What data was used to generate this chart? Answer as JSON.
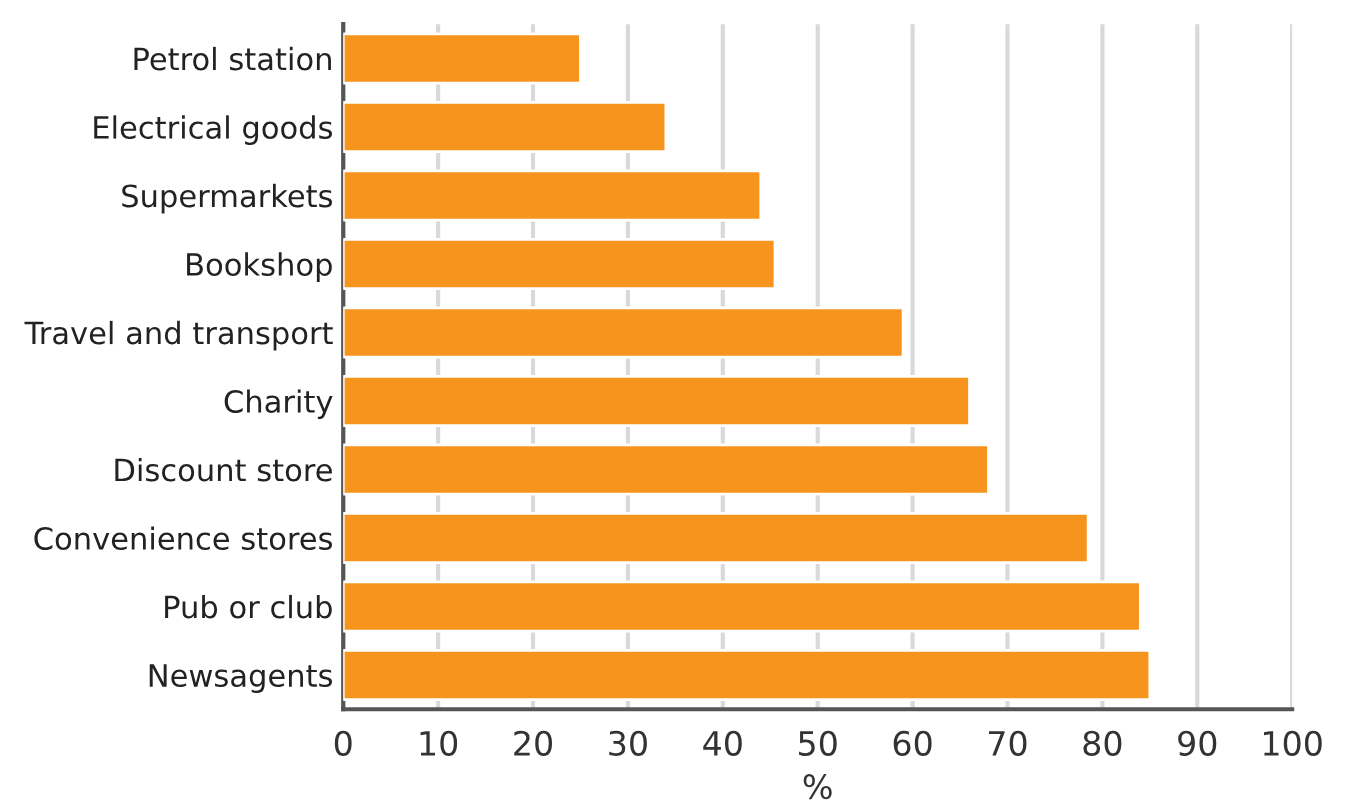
{
  "chart_data": {
    "type": "bar",
    "orientation": "horizontal",
    "xlabel": "%",
    "categories": [
      "Petrol station",
      "Electrical goods",
      "Supermarkets",
      "Bookshop",
      "Travel and transport",
      "Charity",
      "Discount store",
      "Convenience stores",
      "Pub or club",
      "Newsagents"
    ],
    "values": [
      25,
      34,
      44,
      45.5,
      59,
      66,
      68,
      78.5,
      84,
      85
    ],
    "color": "#f7941d",
    "xlim": [
      0,
      100
    ],
    "xticks": [
      0,
      10,
      20,
      30,
      40,
      50,
      60,
      70,
      80,
      90,
      100
    ],
    "grid": "x"
  }
}
